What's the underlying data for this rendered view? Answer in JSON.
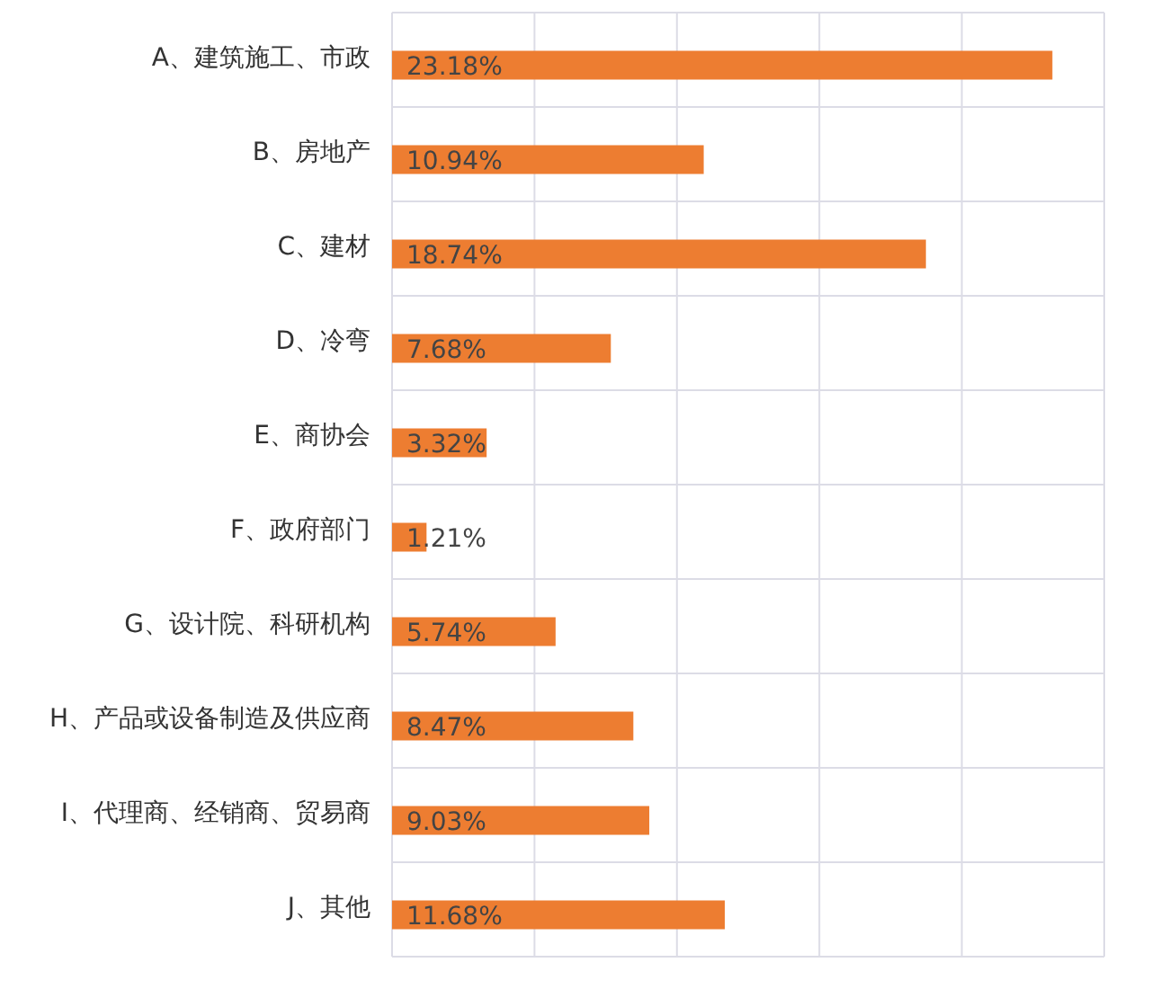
{
  "chart_data": {
    "type": "bar",
    "orientation": "horizontal",
    "categories": [
      "A、建筑施工、市政",
      "B、房地产",
      "C、建材",
      "D、冷弯",
      "E、商协会",
      "F、政府部门",
      "G、设计院、科研机构",
      "H、产品或设备制造及供应商",
      "I、代理商、经销商、贸易商",
      "J、其他"
    ],
    "values": [
      23.18,
      10.94,
      18.74,
      7.68,
      3.32,
      1.21,
      5.74,
      8.47,
      9.03,
      11.68
    ],
    "value_labels": [
      "23.18%",
      "10.94%",
      "18.74%",
      "7.68%",
      "3.32%",
      "1.21%",
      "5.74%",
      "8.47%",
      "9.03%",
      "11.68%"
    ],
    "color": "#ed7d31",
    "xlim": [
      0,
      25
    ],
    "xticks": [
      {
        "value": 0,
        "label": null
      },
      {
        "value": 5,
        "label": null
      },
      {
        "value": 10,
        "label": null
      },
      {
        "value": 15,
        "label": null
      },
      {
        "value": 20,
        "label": null
      },
      {
        "value": 25,
        "label": null
      }
    ],
    "tick_labels": "y",
    "grid": true
  }
}
